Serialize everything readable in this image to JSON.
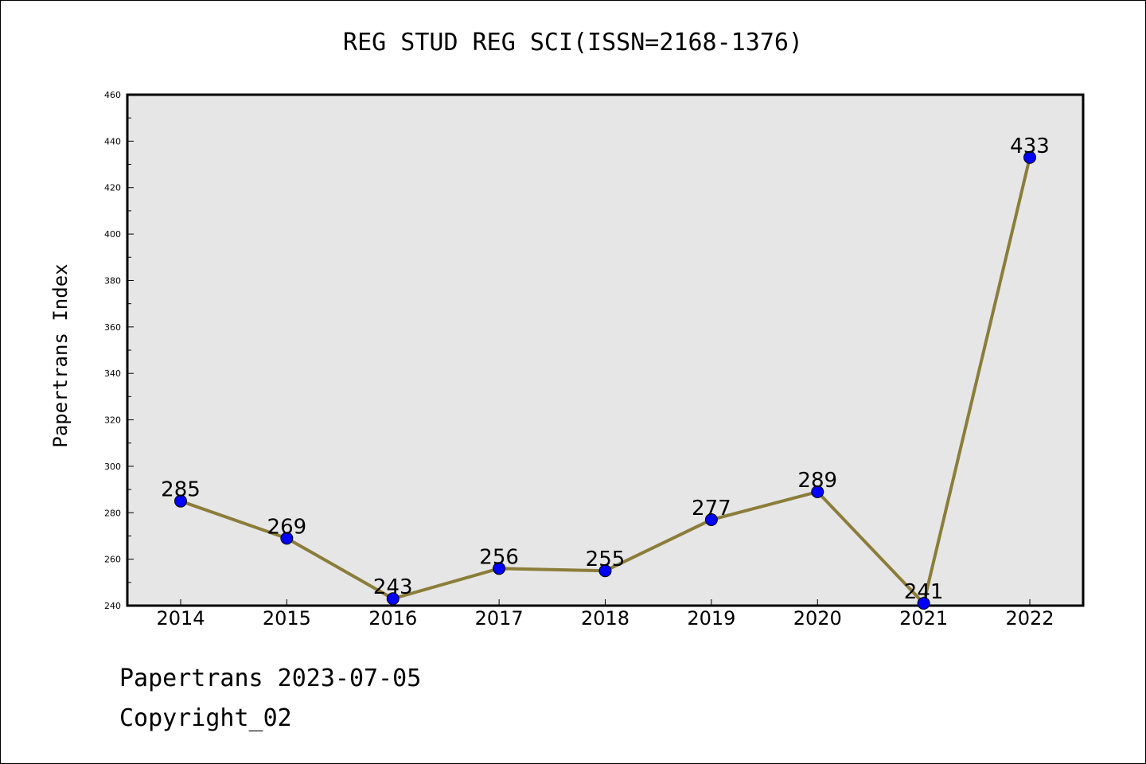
{
  "chart_data": {
    "type": "line",
    "title": "REG STUD REG SCI(ISSN=2168-1376)",
    "xlabel": "",
    "ylabel": "Papertrans Index",
    "categories": [
      "2014",
      "2015",
      "2016",
      "2017",
      "2018",
      "2019",
      "2020",
      "2021",
      "2022"
    ],
    "series": [
      {
        "values": [
          285,
          269,
          243,
          256,
          255,
          277,
          289,
          241,
          433
        ]
      }
    ],
    "ylim": [
      240,
      460
    ],
    "yticks": [
      240,
      260,
      280,
      300,
      320,
      340,
      360,
      380,
      400,
      420,
      440,
      460
    ],
    "grid": false,
    "colors": {
      "line": "#8B7D3A",
      "marker": "#0000FF",
      "plot_bg": "#E6E6E6"
    }
  },
  "footer": {
    "line1": "Papertrans 2023-07-05",
    "line2": "Copyright_02"
  }
}
